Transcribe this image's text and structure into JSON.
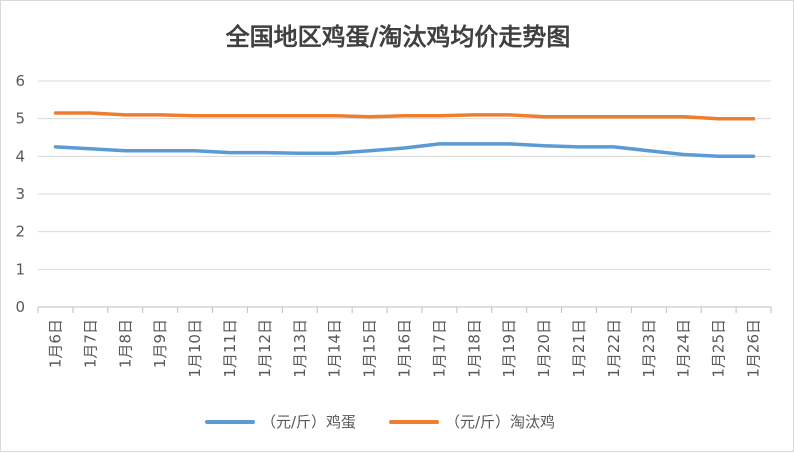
{
  "chart_data": {
    "type": "line",
    "title": "全国地区鸡蛋/淘汰鸡均价走势图",
    "categories": [
      "1月6日",
      "1月7日",
      "1月8日",
      "1月9日",
      "1月10日",
      "1月11日",
      "1月12日",
      "1月13日",
      "1月14日",
      "1月15日",
      "1月16日",
      "1月17日",
      "1月18日",
      "1月19日",
      "1月20日",
      "1月21日",
      "1月22日",
      "1月23日",
      "1月24日",
      "1月25日",
      "1月26日"
    ],
    "series": [
      {
        "name": "（元/斤）鸡蛋",
        "color": "#5b9bd5",
        "values": [
          4.25,
          4.2,
          4.15,
          4.15,
          4.15,
          4.1,
          4.1,
          4.08,
          4.08,
          4.15,
          4.22,
          4.33,
          4.33,
          4.33,
          4.28,
          4.25,
          4.25,
          4.15,
          4.05,
          4.0,
          4.0
        ]
      },
      {
        "name": "（元/斤）淘汰鸡",
        "color": "#ed7d31",
        "values": [
          5.15,
          5.15,
          5.1,
          5.1,
          5.08,
          5.08,
          5.08,
          5.08,
          5.08,
          5.05,
          5.08,
          5.08,
          5.1,
          5.1,
          5.05,
          5.05,
          5.05,
          5.05,
          5.05,
          5.0,
          5.0
        ]
      }
    ],
    "yticks": [
      "0",
      "1",
      "2",
      "3",
      "4",
      "5",
      "6"
    ],
    "ylim": [
      0,
      6
    ],
    "grid": true,
    "legend_position": "bottom"
  }
}
